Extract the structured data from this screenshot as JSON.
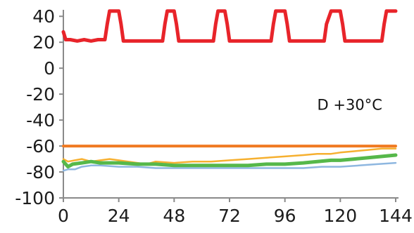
{
  "chart_data": {
    "type": "line",
    "title": "",
    "xlabel": "",
    "ylabel": "",
    "xlim": [
      0,
      144
    ],
    "ylim": [
      -100,
      45
    ],
    "x_ticks": [
      0,
      24,
      48,
      72,
      96,
      120,
      144
    ],
    "y_ticks": [
      40,
      20,
      0,
      -20,
      -40,
      -60,
      -80,
      -100
    ],
    "grid": false,
    "legend": "none",
    "annotation": {
      "text": "D +30°C",
      "x": 110,
      "y": -32
    },
    "series": [
      {
        "color": "#e8242a",
        "x": [
          0,
          1,
          3,
          6,
          9,
          12,
          15,
          18,
          19,
          20,
          24,
          25,
          26,
          30,
          35,
          40,
          43,
          44,
          45,
          48,
          49,
          50,
          55,
          60,
          65,
          66,
          67,
          70,
          71,
          72,
          75,
          80,
          85,
          90,
          91,
          92,
          96,
          97,
          98,
          100,
          105,
          110,
          113,
          114,
          116,
          120,
          121,
          122,
          125,
          130,
          135,
          138,
          139,
          140,
          144
        ],
        "y": [
          28,
          22,
          22,
          21,
          22,
          21,
          22,
          22,
          34,
          44,
          44,
          34,
          21,
          21,
          21,
          21,
          21,
          34,
          44,
          44,
          34,
          21,
          21,
          21,
          21,
          34,
          44,
          44,
          34,
          21,
          21,
          21,
          21,
          21,
          34,
          44,
          44,
          34,
          21,
          21,
          21,
          21,
          21,
          34,
          44,
          44,
          34,
          21,
          21,
          21,
          21,
          21,
          34,
          44,
          44
        ]
      },
      {
        "color": "#f07a22",
        "x": [
          0,
          144
        ],
        "y": [
          -60,
          -60
        ]
      },
      {
        "color": "#f6b030",
        "x": [
          0,
          2,
          5,
          8,
          12,
          16,
          20,
          24,
          28,
          32,
          36,
          40,
          48,
          56,
          64,
          72,
          80,
          88,
          96,
          104,
          110,
          116,
          120,
          126,
          132,
          138,
          144
        ],
        "y": [
          -70,
          -72,
          -71,
          -70,
          -72,
          -71,
          -70,
          -71,
          -72,
          -73,
          -74,
          -72,
          -73,
          -72,
          -72,
          -71,
          -70,
          -69,
          -68,
          -67,
          -66,
          -66,
          -65,
          -64,
          -63,
          -62,
          -62
        ]
      },
      {
        "color": "#56b84a",
        "x": [
          0,
          2,
          4,
          8,
          12,
          16,
          24,
          32,
          40,
          48,
          56,
          64,
          72,
          80,
          88,
          96,
          104,
          110,
          116,
          120,
          126,
          132,
          138,
          144
        ],
        "y": [
          -72,
          -76,
          -74,
          -73,
          -72,
          -73,
          -73,
          -74,
          -74,
          -75,
          -75,
          -75,
          -75,
          -75,
          -74,
          -74,
          -73,
          -72,
          -71,
          -71,
          -70,
          -69,
          -68,
          -67
        ]
      },
      {
        "color": "#8eb7e0",
        "x": [
          0,
          2,
          5,
          8,
          12,
          16,
          24,
          32,
          40,
          48,
          56,
          64,
          72,
          80,
          88,
          96,
          104,
          112,
          120,
          128,
          136,
          144
        ],
        "y": [
          -79,
          -78,
          -78,
          -76,
          -75,
          -75,
          -76,
          -76,
          -77,
          -77,
          -77,
          -77,
          -77,
          -77,
          -77,
          -77,
          -77,
          -76,
          -76,
          -75,
          -74,
          -73
        ]
      }
    ]
  }
}
